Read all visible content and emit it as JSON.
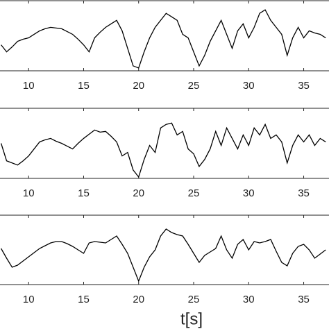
{
  "chart_data": [
    {
      "type": "line",
      "x": [
        7.5,
        8,
        8.5,
        9,
        9.5,
        10,
        10.5,
        11,
        11.5,
        12,
        12.5,
        13,
        13.5,
        14,
        14.5,
        15,
        15.5,
        16,
        16.5,
        17,
        17.5,
        18,
        18.5,
        19,
        19.5,
        20,
        20.5,
        21,
        21.5,
        22,
        22.5,
        23,
        23.5,
        24,
        24.5,
        25,
        25.5,
        26,
        26.5,
        27,
        27.5,
        28,
        28.5,
        29,
        29.5,
        30,
        30.5,
        31,
        31.5,
        32,
        32.5,
        33,
        33.5,
        34,
        34.5,
        35,
        35.5,
        36,
        36.5,
        37
      ],
      "values": [
        37,
        27,
        34,
        42,
        45,
        47,
        52,
        57,
        60,
        62,
        61,
        60,
        56,
        52,
        45,
        37,
        27,
        47,
        55,
        62,
        67,
        72,
        57,
        32,
        7,
        4,
        27,
        47,
        62,
        72,
        82,
        77,
        72,
        52,
        47,
        27,
        7,
        22,
        42,
        57,
        72,
        52,
        32,
        57,
        67,
        47,
        62,
        82,
        87,
        72,
        62,
        52,
        22,
        47,
        62,
        47,
        57,
        54,
        52,
        47
      ],
      "color": "#000000",
      "xlim": [
        7.4,
        37.3
      ],
      "ylim": [
        0,
        100
      ],
      "xticks": [
        10,
        15,
        20,
        25,
        30,
        35
      ]
    },
    {
      "type": "line",
      "x": [
        7.5,
        8,
        8.5,
        9,
        9.5,
        10,
        10.5,
        11,
        11.5,
        12,
        12.5,
        13,
        13.5,
        14,
        14.5,
        15,
        15.5,
        16,
        16.5,
        17,
        17.5,
        18,
        18.5,
        19,
        19.5,
        20,
        20.5,
        21,
        21.5,
        22,
        22.5,
        23,
        23.5,
        24,
        24.5,
        25,
        25.5,
        26,
        26.5,
        27,
        27.5,
        28,
        28.5,
        29,
        29.5,
        30,
        30.5,
        31,
        31.5,
        32,
        32.5,
        33,
        33.5,
        34,
        34.5,
        35,
        35.5,
        36,
        36.5,
        37
      ],
      "values": [
        50,
        25,
        22,
        19,
        25,
        32,
        42,
        52,
        55,
        57,
        53,
        50,
        46,
        42,
        50,
        57,
        63,
        69,
        66,
        67,
        60,
        52,
        32,
        37,
        12,
        2,
        27,
        47,
        37,
        72,
        77,
        79,
        62,
        67,
        42,
        35,
        17,
        27,
        42,
        67,
        47,
        72,
        57,
        42,
        62,
        47,
        72,
        62,
        77,
        57,
        62,
        52,
        22,
        47,
        62,
        52,
        62,
        47,
        57,
        52
      ],
      "color": "#000000",
      "xlim": [
        7.4,
        37.3
      ],
      "ylim": [
        0,
        100
      ],
      "xticks": [
        10,
        15,
        20,
        25,
        30,
        35
      ]
    },
    {
      "type": "line",
      "x": [
        7.5,
        8,
        8.5,
        9,
        9.5,
        10,
        10.5,
        11,
        11.5,
        12,
        12.5,
        13,
        13.5,
        14,
        14.5,
        15,
        15.5,
        16,
        16.5,
        17,
        17.5,
        18,
        18.5,
        19,
        19.5,
        20,
        20.5,
        21,
        21.5,
        22,
        22.5,
        23,
        23.5,
        24,
        24.5,
        25,
        25.5,
        26,
        26.5,
        27,
        27.5,
        28,
        28.5,
        29,
        29.5,
        30,
        30.5,
        31,
        31.5,
        32,
        32.5,
        33,
        33.5,
        34,
        34.5,
        35,
        35.5,
        36,
        36.5,
        37
      ],
      "values": [
        52,
        38,
        25,
        28,
        34,
        40,
        46,
        52,
        56,
        60,
        62,
        62,
        59,
        55,
        50,
        45,
        60,
        62,
        61,
        60,
        65,
        70,
        58,
        45,
        25,
        5,
        25,
        40,
        50,
        70,
        80,
        75,
        72,
        70,
        58,
        45,
        32,
        42,
        47,
        52,
        70,
        50,
        38,
        58,
        65,
        50,
        62,
        60,
        62,
        65,
        48,
        32,
        27,
        45,
        55,
        58,
        50,
        38,
        44,
        50
      ],
      "color": "#000000",
      "xlim": [
        7.4,
        37.3
      ],
      "ylim": [
        0,
        100
      ],
      "xticks": [
        10,
        15,
        20,
        25,
        30,
        35
      ],
      "xlabel": "t[s]"
    }
  ]
}
